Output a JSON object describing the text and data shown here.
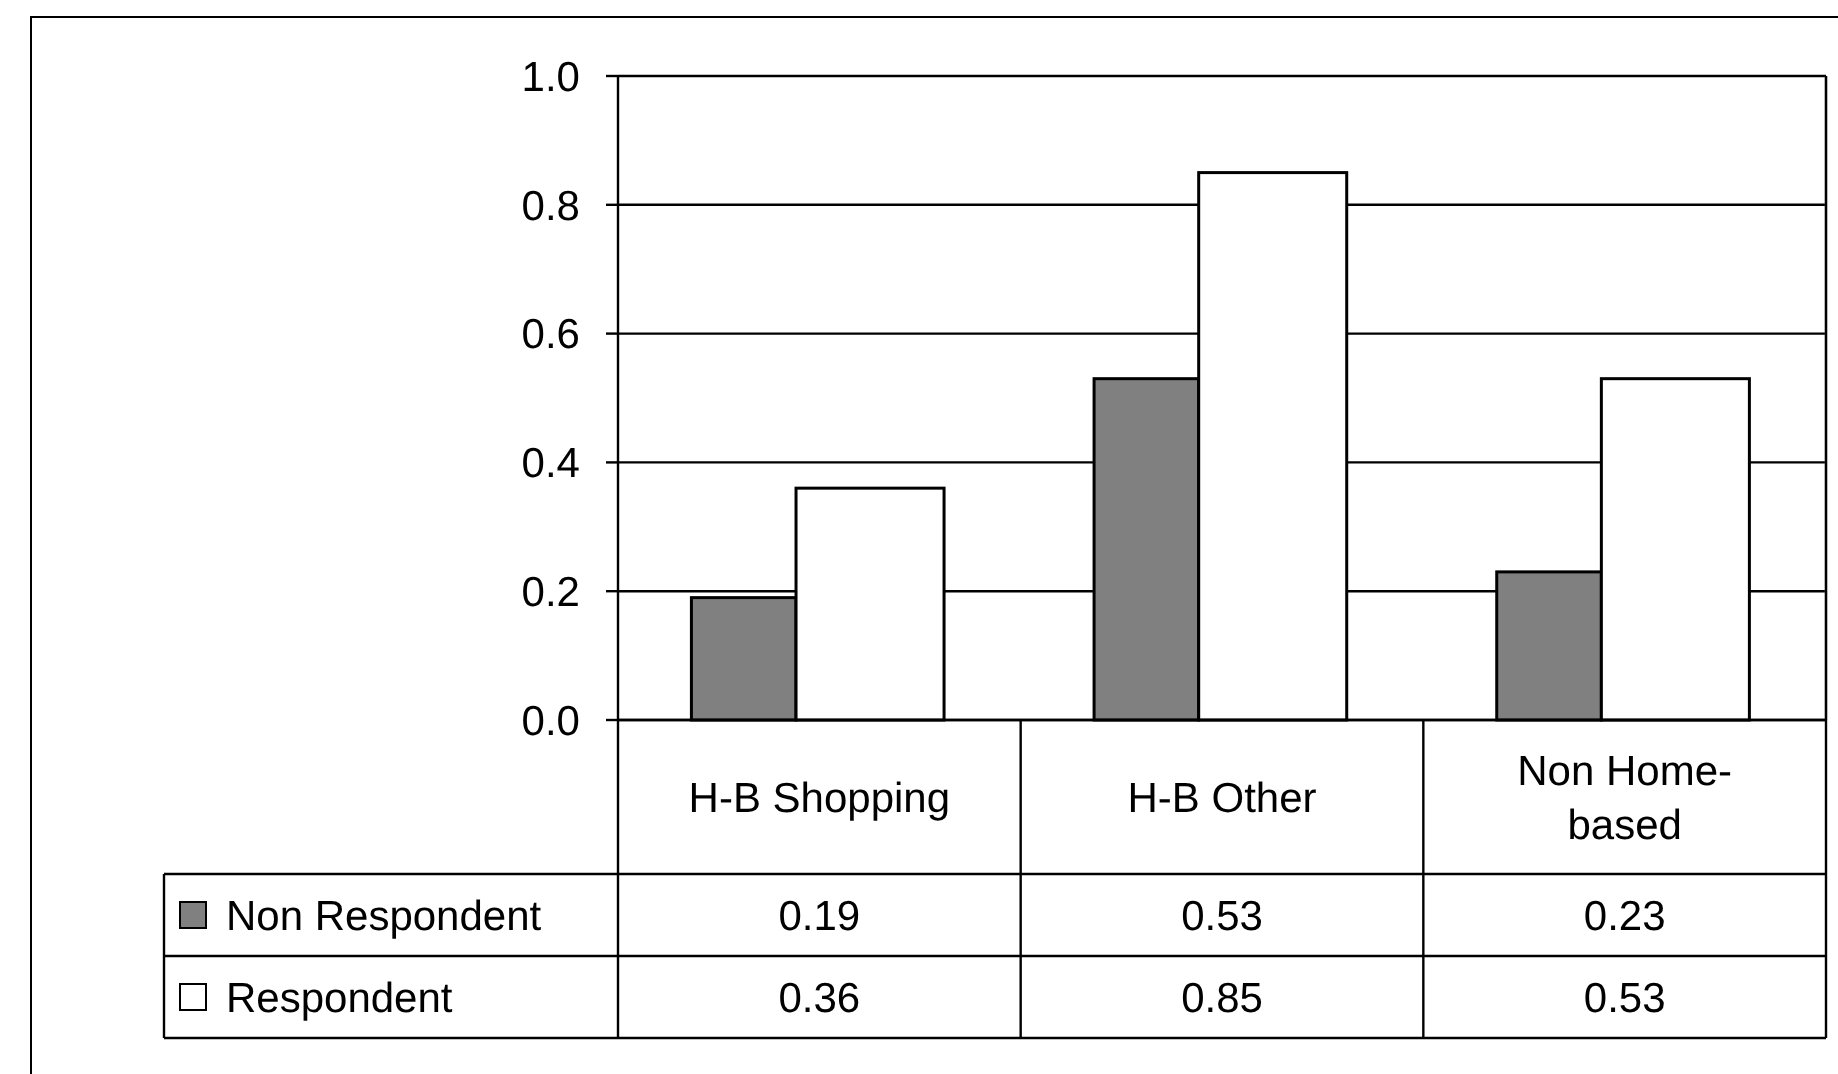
{
  "chart_data": {
    "type": "bar",
    "categories": [
      "H-B Shopping",
      "H-B Other",
      "Non Home-based"
    ],
    "series": [
      {
        "name": "Non Respondent",
        "color": "#808080",
        "values": [
          0.19,
          0.53,
          0.23
        ]
      },
      {
        "name": "Respondent",
        "color": "#ffffff",
        "values": [
          0.36,
          0.85,
          0.53
        ]
      }
    ],
    "ylim": [
      0,
      1
    ],
    "yticks": [
      {
        "value": 0,
        "label": "0.0"
      },
      0.2,
      0.4,
      0.6,
      0.8,
      {
        "value": 1,
        "label": "1.0"
      }
    ],
    "grid": "y",
    "legend": "bottom",
    "data_labels": true
  }
}
